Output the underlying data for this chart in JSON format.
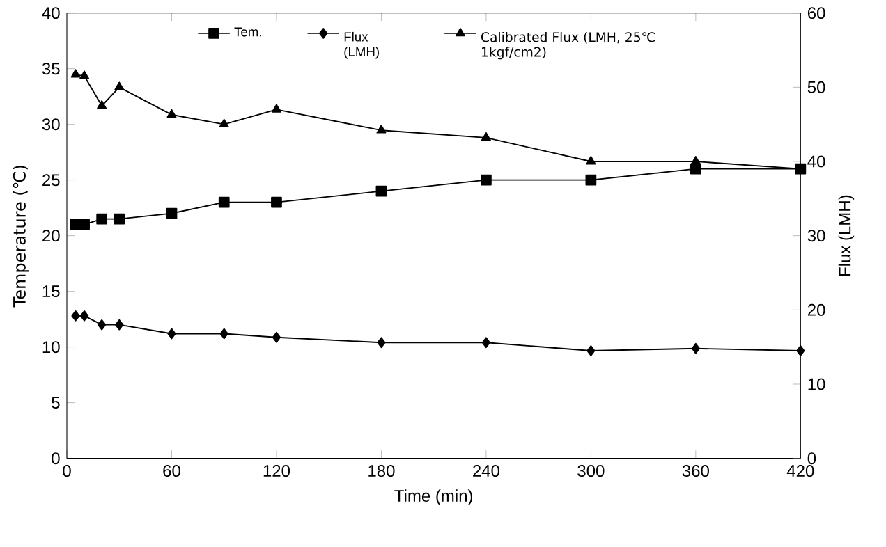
{
  "chart_data": {
    "type": "line",
    "xlabel": "Time (min)",
    "ylabel": "Temperature (℃)",
    "y2label": "Flux (LMH)",
    "x": [
      5,
      10,
      20,
      30,
      60,
      90,
      120,
      180,
      240,
      300,
      360,
      420
    ],
    "xlim": [
      0,
      420
    ],
    "xticks": [
      0,
      60,
      120,
      180,
      240,
      300,
      360,
      420
    ],
    "ylim": [
      0,
      40
    ],
    "yticks": [
      0,
      5,
      10,
      15,
      20,
      25,
      30,
      35,
      40
    ],
    "y2lim": [
      0,
      60
    ],
    "y2ticks": [
      0,
      10,
      20,
      30,
      40,
      50,
      60
    ],
    "legend": "top",
    "series": [
      {
        "name": "Tem.",
        "color": "#000000",
        "marker": "square",
        "values": [
          21,
          21,
          21.5,
          21.5,
          22,
          23,
          23,
          24,
          25,
          25,
          26,
          26
        ]
      },
      {
        "name": "Flux (LMH)",
        "color": "#000000",
        "marker": "diamond",
        "axis": "y2",
        "values": [
          19.2,
          19.2,
          18,
          18,
          16.8,
          16.8,
          16.3,
          15.6,
          15.6,
          14.5,
          14.8,
          14.5
        ]
      },
      {
        "name": "Calibrated Flux (LMH, 25℃ 1kgf/cm2)",
        "color": "#000000",
        "marker": "triangle",
        "axis": "y2",
        "values": [
          51.7,
          51.5,
          47.5,
          50,
          46.3,
          45,
          47,
          44.2,
          43.2,
          40,
          40,
          39
        ]
      }
    ]
  }
}
